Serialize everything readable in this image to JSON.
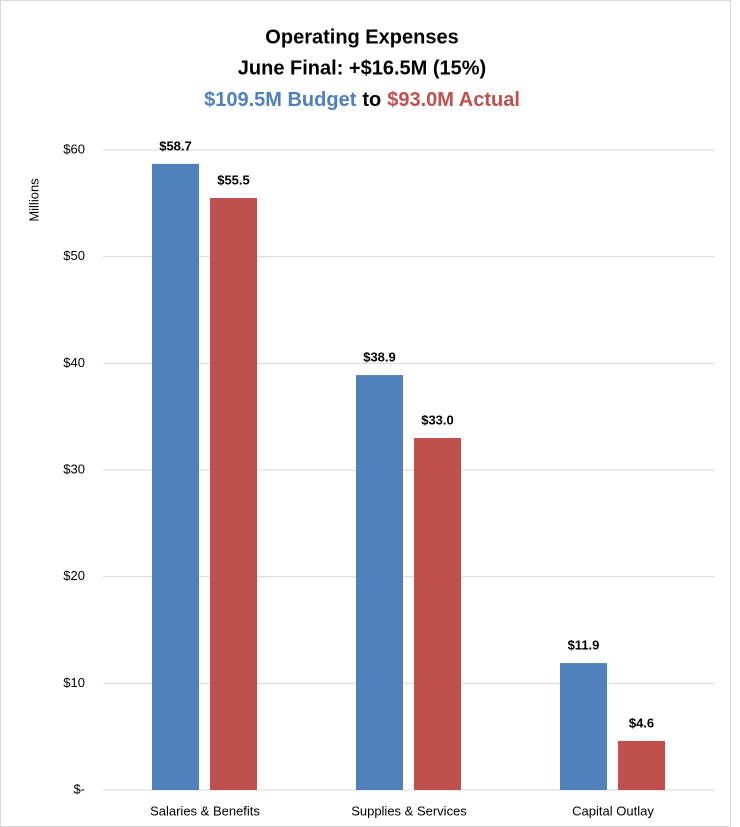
{
  "chart_data": {
    "type": "bar",
    "title": "Operating Expenses",
    "subtitle": "June Final: +$16.5M (15%)",
    "subtitle_parts": [
      "$109.5M Budget",
      "to",
      "$93.0M Actual"
    ],
    "y_label": "Millions",
    "categories": [
      "Salaries & Benefits",
      "Supplies & Services",
      "Capital Outlay"
    ],
    "series": [
      {
        "color": "#4f81bd",
        "values": [
          58.7,
          38.9,
          11.9
        ],
        "value_labels": [
          "$58.7",
          "$38.9",
          "$11.9"
        ]
      },
      {
        "color": "#c0504d",
        "values": [
          55.5,
          33.0,
          4.6
        ],
        "value_labels": [
          "$55.5",
          "$33.0",
          "$4.6"
        ]
      }
    ],
    "ylim": [
      0,
      60
    ],
    "yticks": [
      {
        "value": 0,
        "label": "$-"
      },
      {
        "value": 10,
        "label": "$10"
      },
      {
        "value": 20,
        "label": "$20"
      },
      {
        "value": 30,
        "label": "$30"
      },
      {
        "value": 40,
        "label": "$40"
      },
      {
        "value": 50,
        "label": "$50"
      },
      {
        "value": 60,
        "label": "$60"
      }
    ],
    "grid": true
  }
}
